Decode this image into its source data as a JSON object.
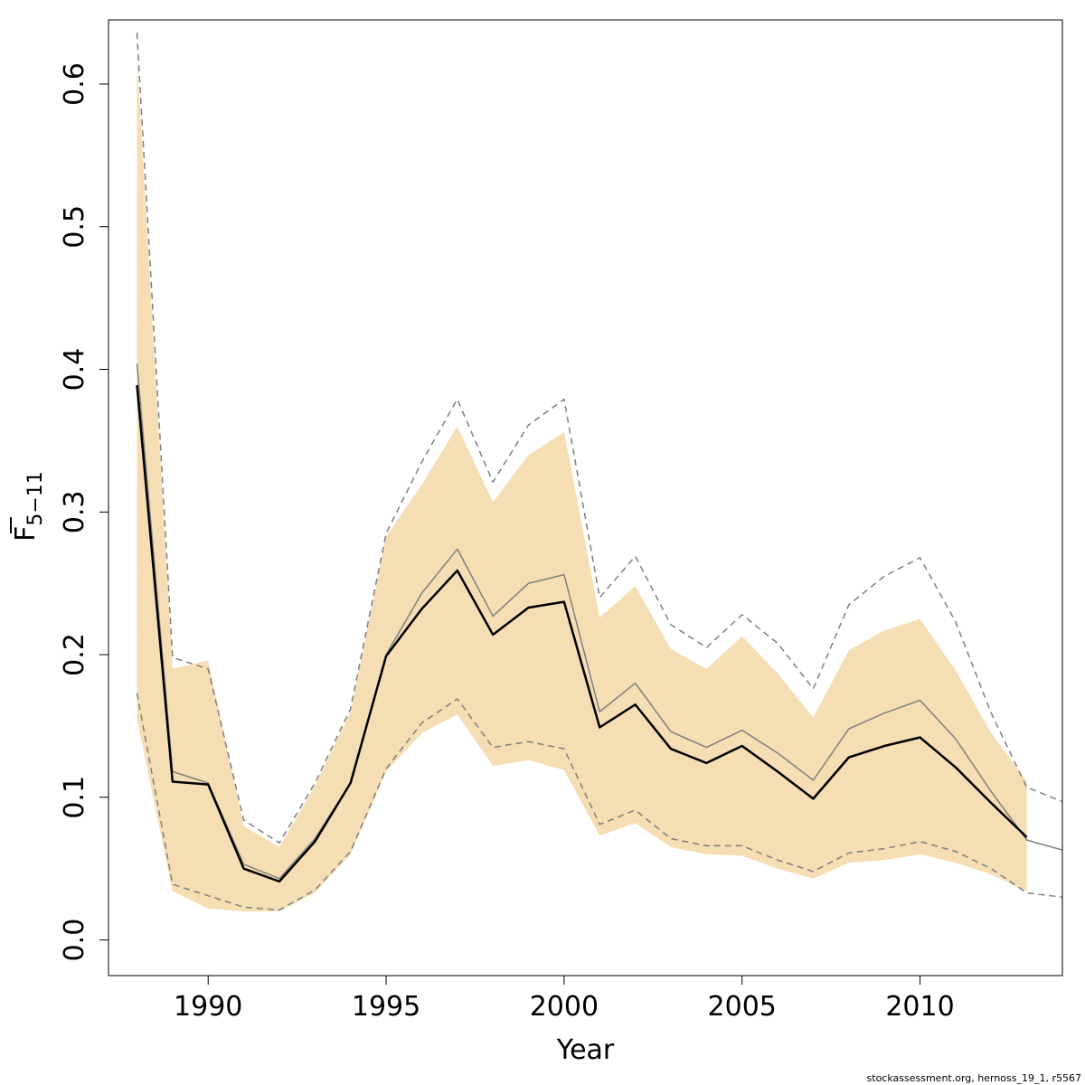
{
  "chart_data": {
    "type": "line",
    "xlabel": "Year",
    "ylabel": {
      "main": "F",
      "subscript": "5−11"
    },
    "xlim": [
      1987.2,
      2014
    ],
    "ylim": [
      -0.025,
      0.645
    ],
    "x_ticks": [
      1990,
      1995,
      2000,
      2005,
      2010
    ],
    "y_ticks": [
      0.0,
      0.1,
      0.2,
      0.3,
      0.4,
      0.5,
      0.6
    ],
    "y_tick_labels": [
      "0.0",
      "0.1",
      "0.2",
      "0.3",
      "0.4",
      "0.5",
      "0.6"
    ],
    "grid": false,
    "legend": "none",
    "colors": {
      "band": "#f5deb3",
      "estimate": "#000000",
      "previous": "#808080",
      "previous_ci": "#808080"
    },
    "confidence_band": {
      "x": [
        1988,
        1989,
        1990,
        1991,
        1992,
        1993,
        1994,
        1995,
        1996,
        1997,
        1998,
        1999,
        2000,
        2001,
        2002,
        2003,
        2004,
        2005,
        2006,
        2007,
        2008,
        2009,
        2010,
        2011,
        2012,
        2013
      ],
      "lower": [
        0.155,
        0.034,
        0.022,
        0.02,
        0.02,
        0.033,
        0.06,
        0.118,
        0.145,
        0.158,
        0.122,
        0.126,
        0.119,
        0.073,
        0.082,
        0.065,
        0.06,
        0.059,
        0.05,
        0.043,
        0.054,
        0.056,
        0.06,
        0.054,
        0.046,
        0.034
      ],
      "upper": [
        0.62,
        0.19,
        0.196,
        0.08,
        0.065,
        0.108,
        0.16,
        0.283,
        0.319,
        0.36,
        0.307,
        0.34,
        0.356,
        0.226,
        0.248,
        0.204,
        0.19,
        0.213,
        0.187,
        0.156,
        0.203,
        0.217,
        0.225,
        0.189,
        0.145,
        0.111
      ]
    },
    "series": [
      {
        "x": [
          1988,
          1989,
          1990,
          1991,
          1992,
          1993,
          1994,
          1995,
          1996,
          1997,
          1998,
          1999,
          2000,
          2001,
          2002,
          2003,
          2004,
          2005,
          2006,
          2007,
          2008,
          2009,
          2010,
          2011,
          2012,
          2013
        ],
        "values": [
          0.389,
          0.111,
          0.109,
          0.05,
          0.041,
          0.069,
          0.11,
          0.199,
          0.232,
          0.259,
          0.214,
          0.233,
          0.237,
          0.149,
          0.165,
          0.134,
          0.124,
          0.136,
          0.118,
          0.099,
          0.128,
          0.136,
          0.142,
          0.121,
          0.096,
          0.072
        ],
        "style": "solid-thick"
      },
      {
        "x": [
          1988,
          1989,
          1990,
          1991,
          1992,
          1993,
          1994,
          1995,
          1996,
          1997,
          1998,
          1999,
          2000,
          2001,
          2002,
          2003,
          2004,
          2005,
          2006,
          2007,
          2008,
          2009,
          2010,
          2011,
          2012,
          2013,
          2014
        ],
        "values": [
          0.404,
          0.118,
          0.11,
          0.053,
          0.043,
          0.071,
          0.11,
          0.2,
          0.243,
          0.274,
          0.227,
          0.25,
          0.256,
          0.16,
          0.18,
          0.146,
          0.135,
          0.147,
          0.131,
          0.112,
          0.148,
          0.159,
          0.168,
          0.141,
          0.104,
          0.07,
          0.063
        ],
        "style": "solid-thin"
      },
      {
        "x": [
          1988,
          1989,
          1990,
          1991,
          1992,
          1993,
          1994,
          1995,
          1996,
          1997,
          1998,
          1999,
          2000,
          2001,
          2002,
          2003,
          2004,
          2005,
          2006,
          2007,
          2008,
          2009,
          2010,
          2011,
          2012,
          2013,
          2014
        ],
        "values": [
          0.636,
          0.198,
          0.19,
          0.084,
          0.068,
          0.11,
          0.162,
          0.285,
          0.335,
          0.379,
          0.321,
          0.361,
          0.379,
          0.24,
          0.269,
          0.221,
          0.205,
          0.228,
          0.208,
          0.176,
          0.235,
          0.255,
          0.268,
          0.223,
          0.159,
          0.107,
          0.097
        ],
        "style": "dashed"
      },
      {
        "x": [
          1988,
          1989,
          1990,
          1991,
          1992,
          1993,
          1994,
          1995,
          1996,
          1997,
          1998,
          1999,
          2000,
          2001,
          2002,
          2003,
          2004,
          2005,
          2006,
          2007,
          2008,
          2009,
          2010,
          2011,
          2012,
          2013,
          2014
        ],
        "values": [
          0.173,
          0.039,
          0.031,
          0.023,
          0.021,
          0.035,
          0.062,
          0.12,
          0.152,
          0.169,
          0.135,
          0.139,
          0.134,
          0.081,
          0.091,
          0.071,
          0.066,
          0.066,
          0.056,
          0.048,
          0.061,
          0.064,
          0.069,
          0.062,
          0.05,
          0.033,
          0.03
        ],
        "style": "dashed"
      }
    ],
    "credit": "stockassessment.org, hernoss_19_1, r5567"
  }
}
